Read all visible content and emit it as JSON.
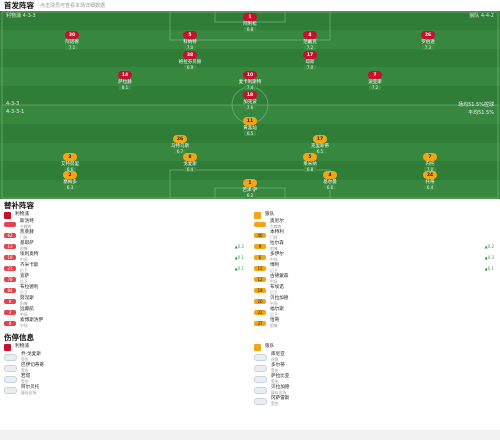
{
  "header": {
    "title": "首发阵容",
    "subtitle": "点击球员可查看本场详细数据"
  },
  "pitch": {
    "home_label": "利物浦 4-3-3",
    "away_label": "狼队 4-4-2",
    "home_stats": [
      "4-3-3",
      "4-3-3-1"
    ],
    "away_stats": [
      "场均51.5%控球",
      "平均51.5%"
    ],
    "home_players": [
      {
        "num": "30",
        "name": "阿诺德",
        "rating": "7.1"
      },
      {
        "num": "5",
        "name": "科纳特",
        "rating": "7.0"
      },
      {
        "num": "4",
        "name": "范戴克",
        "rating": "7.2"
      },
      {
        "num": "26",
        "name": "罗伯逊",
        "rating": "7.3"
      },
      {
        "num": "38",
        "name": "格拉芬贝赫",
        "rating": "6.9"
      },
      {
        "num": "17",
        "name": "琼斯",
        "rating": "7.0"
      },
      {
        "num": "14",
        "name": "萨拉赫",
        "rating": "8.1"
      },
      {
        "num": "10",
        "name": "麦卡利斯特",
        "rating": "7.4"
      },
      {
        "num": "7",
        "name": "迪亚斯",
        "rating": "7.2"
      },
      {
        "num": "18",
        "name": "加克波",
        "rating": "7.6"
      },
      {
        "num": "1",
        "name": "阿利松",
        "rating": "6.8"
      }
    ],
    "away_players": [
      {
        "num": "11",
        "name": "黄喜灿",
        "rating": "6.5"
      },
      {
        "num": "26",
        "name": "马特乌斯",
        "rating": "6.7"
      },
      {
        "num": "3",
        "name": "艾特努里",
        "rating": "6.6"
      },
      {
        "num": "8",
        "name": "戈麦斯",
        "rating": "6.4"
      },
      {
        "num": "5",
        "name": "莱米纳",
        "rating": "6.8"
      },
      {
        "num": "7",
        "name": "内托",
        "rating": "7.0"
      },
      {
        "num": "2",
        "name": "塞梅多",
        "rating": "6.3"
      },
      {
        "num": "17",
        "name": "克里斯蒂",
        "rating": "6.5"
      },
      {
        "num": "4",
        "name": "基尔曼",
        "rating": "6.6"
      },
      {
        "num": "24",
        "name": "托蒂",
        "rating": "6.4"
      },
      {
        "num": "1",
        "name": "若泽·萨",
        "rating": "6.2"
      }
    ]
  },
  "subs": {
    "title": "替补阵容",
    "home_team": "利物浦",
    "away_team": "狼队",
    "home": [
      {
        "num": "",
        "name": "斯洛特",
        "role": "主教练",
        "chg": ""
      },
      {
        "num": "62",
        "name": "凯莱赫",
        "role": "门将",
        "chg": ""
      },
      {
        "num": "13",
        "name": "基耶萨",
        "role": "前锋",
        "chg": "▲0.2"
      },
      {
        "num": "19",
        "name": "埃利奥特",
        "role": "中场",
        "chg": "▲0.1"
      },
      {
        "num": "21",
        "name": "齐米卡斯",
        "role": "后卫",
        "chg": "▲0.1"
      },
      {
        "num": "78",
        "name": "宽萨",
        "role": "后卫",
        "chg": ""
      },
      {
        "num": "84",
        "name": "布拉德利",
        "role": "后卫",
        "chg": ""
      },
      {
        "num": "9",
        "name": "努涅斯",
        "role": "前锋",
        "chg": ""
      },
      {
        "num": "3",
        "name": "远藤航",
        "role": "中场",
        "chg": ""
      },
      {
        "num": "8",
        "name": "索博斯洛伊",
        "role": "中场",
        "chg": ""
      }
    ],
    "away": [
      {
        "num": "",
        "name": "奥尼尔",
        "role": "主教练",
        "chg": ""
      },
      {
        "num": "40",
        "name": "本特利",
        "role": "门将",
        "chg": ""
      },
      {
        "num": "9",
        "name": "拉尔森",
        "role": "前锋",
        "chg": "▲0.2"
      },
      {
        "num": "6",
        "name": "多伊尔",
        "role": "中场",
        "chg": "▲0.3"
      },
      {
        "num": "15",
        "name": "博利",
        "role": "后卫",
        "chg": "▲0.1"
      },
      {
        "num": "12",
        "name": "古德蒙森",
        "role": "中场",
        "chg": ""
      },
      {
        "num": "19",
        "name": "布埃诺",
        "role": "后卫",
        "chg": ""
      },
      {
        "num": "20",
        "name": "贝拉加德",
        "role": "中场",
        "chg": ""
      },
      {
        "num": "22",
        "name": "福尔斯",
        "role": "后卫",
        "chg": ""
      },
      {
        "num": "37",
        "name": "恰奇",
        "role": "前锋",
        "chg": ""
      }
    ]
  },
  "injuries": {
    "title": "伤停信息",
    "home_team": "利物浦",
    "away_team": "狼队",
    "home": [
      {
        "name": "乔·戈麦斯",
        "status": "受伤"
      },
      {
        "name": "巴伊切蒂奇",
        "status": "受伤"
      },
      {
        "name": "若塔",
        "status": "受伤"
      },
      {
        "name": "阿尔贝托",
        "status": "疑似出场"
      }
    ],
    "away": [
      {
        "name": "库尼亚",
        "status": "停赛"
      },
      {
        "name": "多尔蒂",
        "status": "受伤"
      },
      {
        "name": "萨拉比亚",
        "status": "受伤"
      },
      {
        "name": "贝拉加德",
        "status": "疑似出场"
      },
      {
        "name": "冈萨雷斯",
        "status": "受伤"
      }
    ]
  },
  "colors": {
    "home": "#c8102e",
    "away": "#f2a516",
    "pitch": "#2f7d37"
  }
}
